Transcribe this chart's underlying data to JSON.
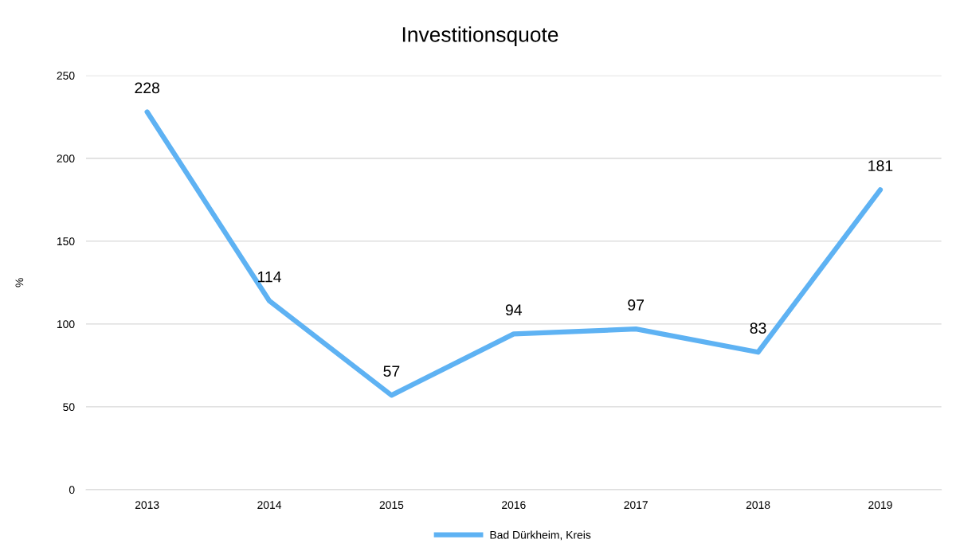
{
  "chart_data": {
    "type": "line",
    "title": "Investitionsquote",
    "ylabel": "%",
    "categories": [
      "2013",
      "2014",
      "2015",
      "2016",
      "2017",
      "2018",
      "2019"
    ],
    "series": [
      {
        "name": "Bad Dürkheim, Kreis",
        "color": "#5eb2f3",
        "values": [
          228,
          114,
          57,
          94,
          97,
          83,
          181
        ]
      }
    ],
    "ylim": [
      0,
      250
    ],
    "yticks": [
      0,
      50,
      100,
      150,
      200,
      250
    ],
    "grid": "y",
    "legend": "bottom",
    "data_labels": true,
    "marker": "none",
    "line_style": "solid"
  }
}
